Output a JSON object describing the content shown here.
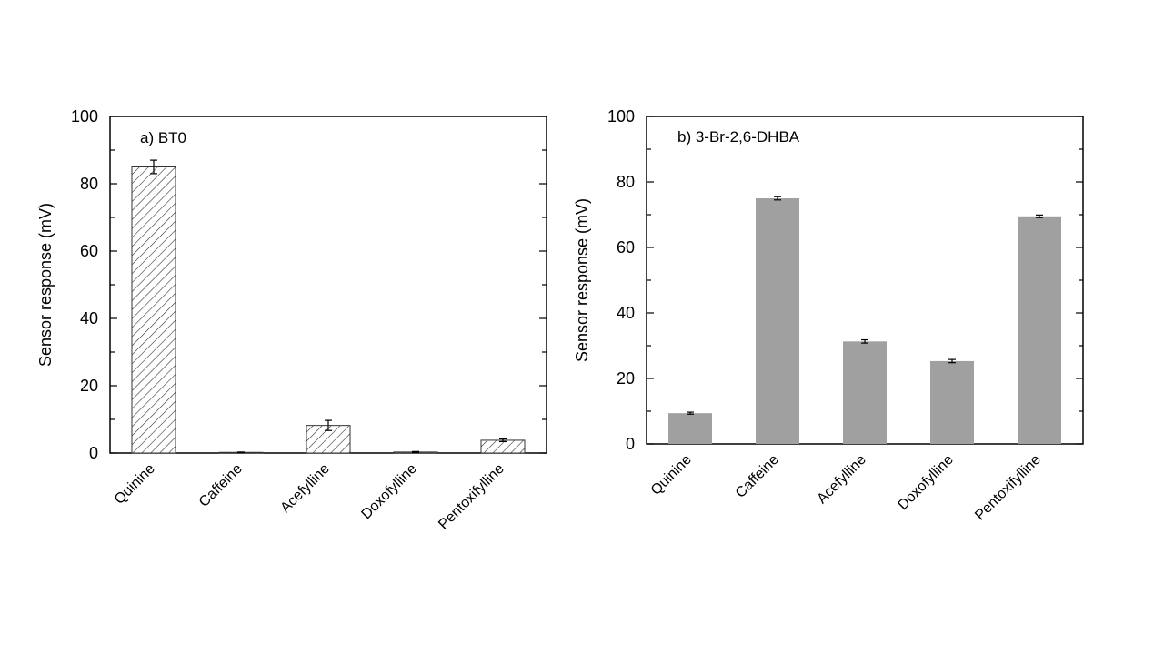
{
  "chart_data": [
    {
      "type": "bar",
      "title": "a) BT0",
      "ylabel": "Sensor response (mV)",
      "xlabel": "",
      "ylim": [
        0,
        100
      ],
      "yticks": [
        0,
        20,
        40,
        60,
        80,
        100
      ],
      "categories": [
        "Quinine",
        "Caffeine",
        "Acefylline",
        "Doxofylline",
        "Pentoxifylline"
      ],
      "values": [
        85,
        0.2,
        8.2,
        0.3,
        3.8
      ],
      "errors": [
        2,
        0.1,
        1.5,
        0.15,
        0.4
      ],
      "bar_style": "hatched",
      "bar_color": "#ffffff",
      "grid": false
    },
    {
      "type": "bar",
      "title": "b) 3-Br-2,6-DHBA",
      "ylabel": "Sensor response (mV)",
      "xlabel": "",
      "ylim": [
        0,
        100
      ],
      "yticks": [
        0,
        20,
        40,
        60,
        80,
        100
      ],
      "categories": [
        "Quinine",
        "Caffeine",
        "Acefylline",
        "Doxofylline",
        "Pentoxifylline"
      ],
      "values": [
        9.4,
        75,
        31.3,
        25.3,
        69.5
      ],
      "errors": [
        0.3,
        0.5,
        0.5,
        0.5,
        0.4
      ],
      "bar_style": "solid",
      "bar_color": "#a0a0a0",
      "grid": false
    }
  ]
}
